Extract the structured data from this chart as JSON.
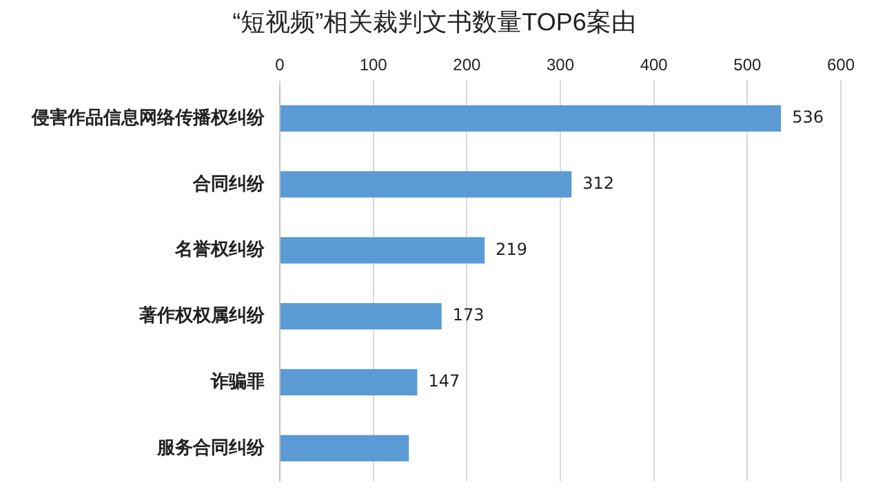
{
  "chart_data": {
    "type": "bar",
    "orientation": "horizontal",
    "title": "“短视频”相关裁判文书数量TOP6案由",
    "categories": [
      "侵害作品信息网络传播权纠纷",
      "合同纠纷",
      "名誉权纠纷",
      "著作权权属纠纷",
      "诈骗罪",
      "服务合同纠纷"
    ],
    "values": [
      536,
      312,
      219,
      173,
      147,
      138
    ],
    "value_labels": [
      "536",
      "312",
      "219",
      "173",
      "147",
      null
    ],
    "color": "#5b9bd5",
    "xlim": [
      0,
      600
    ],
    "xticks": [
      0,
      100,
      200,
      300,
      400,
      500,
      600
    ],
    "grid": "x",
    "legend": false
  }
}
